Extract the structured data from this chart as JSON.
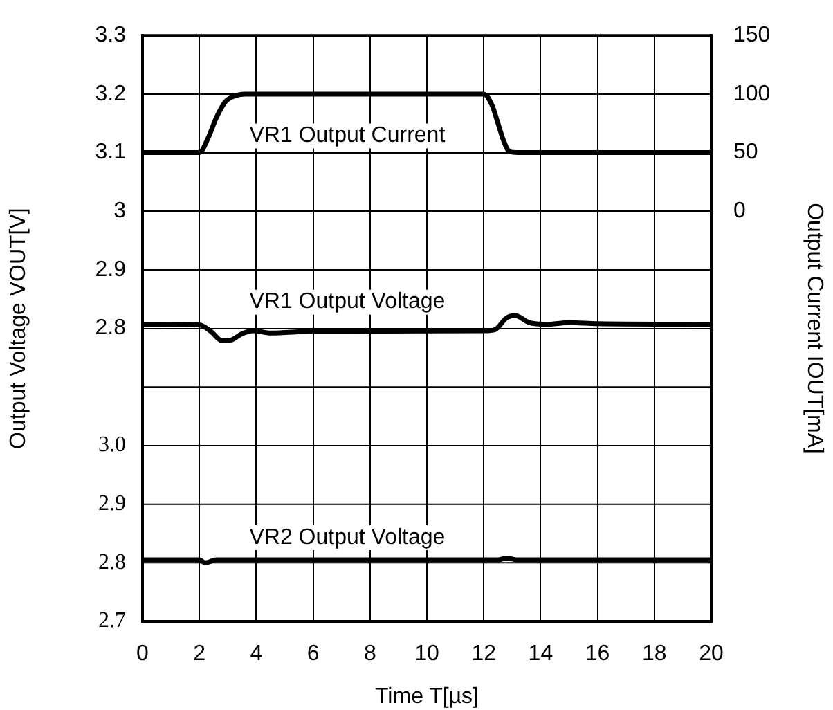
{
  "chart_data": {
    "type": "line",
    "xlabel": "Time T[µs]",
    "ylabel": "Output Voltage VOUT[V]",
    "y2label": "Output Current IOUT[mA]",
    "xlim": [
      0,
      20
    ],
    "xticks": [
      0,
      2,
      4,
      6,
      8,
      10,
      12,
      14,
      16,
      18,
      20
    ],
    "ylim": [
      2.3,
      3.3
    ],
    "yticks": [
      2.8,
      2.9,
      {
        "value": 3,
        "label": "3"
      },
      3.1,
      3.2,
      3.3
    ],
    "y2lim": [
      -350,
      150
    ],
    "y2ticks": [
      0,
      50,
      100,
      150
    ],
    "y3lim": [
      2.7,
      3.7
    ],
    "y3ticks": [
      2.7,
      2.8,
      2.9,
      {
        "value": 3,
        "label": "3.0"
      },
      {
        "value": 3.1,
        "label": null
      }
    ],
    "grid": true,
    "legend": false,
    "marker": "none",
    "line_style": "solid",
    "series": [
      {
        "name": "VR1 Output Current",
        "color": "#000000",
        "axis": "y2",
        "x": [
          0,
          2,
          2.3,
          2.6,
          2.9,
          3.2,
          3.6,
          12,
          12.3,
          12.5,
          12.7,
          12.9,
          13.2,
          20
        ],
        "values": [
          50,
          50,
          62,
          80,
          93,
          98,
          100,
          100,
          90,
          75,
          60,
          51,
          50,
          50
        ]
      },
      {
        "name": "VR1 Output Voltage",
        "color": "#000000",
        "axis": "y",
        "x": [
          0,
          2,
          2.4,
          2.8,
          3.1,
          3.5,
          3.9,
          4.5,
          6,
          12,
          12.4,
          12.8,
          13.1,
          13.6,
          14.2,
          15,
          16,
          20
        ],
        "values": [
          2.807,
          2.806,
          2.795,
          2.779,
          2.78,
          2.791,
          2.796,
          2.792,
          2.795,
          2.796,
          2.798,
          2.818,
          2.822,
          2.81,
          2.807,
          2.81,
          2.808,
          2.807
        ]
      },
      {
        "name": "VR2 Output Voltage",
        "color": "#000000",
        "axis": "y3",
        "x": [
          0,
          2,
          2.2,
          2.6,
          12.5,
          12.8,
          13.2,
          20
        ],
        "values": [
          2.805,
          2.805,
          2.8,
          2.805,
          2.805,
          2.808,
          2.805,
          2.805
        ]
      }
    ]
  }
}
